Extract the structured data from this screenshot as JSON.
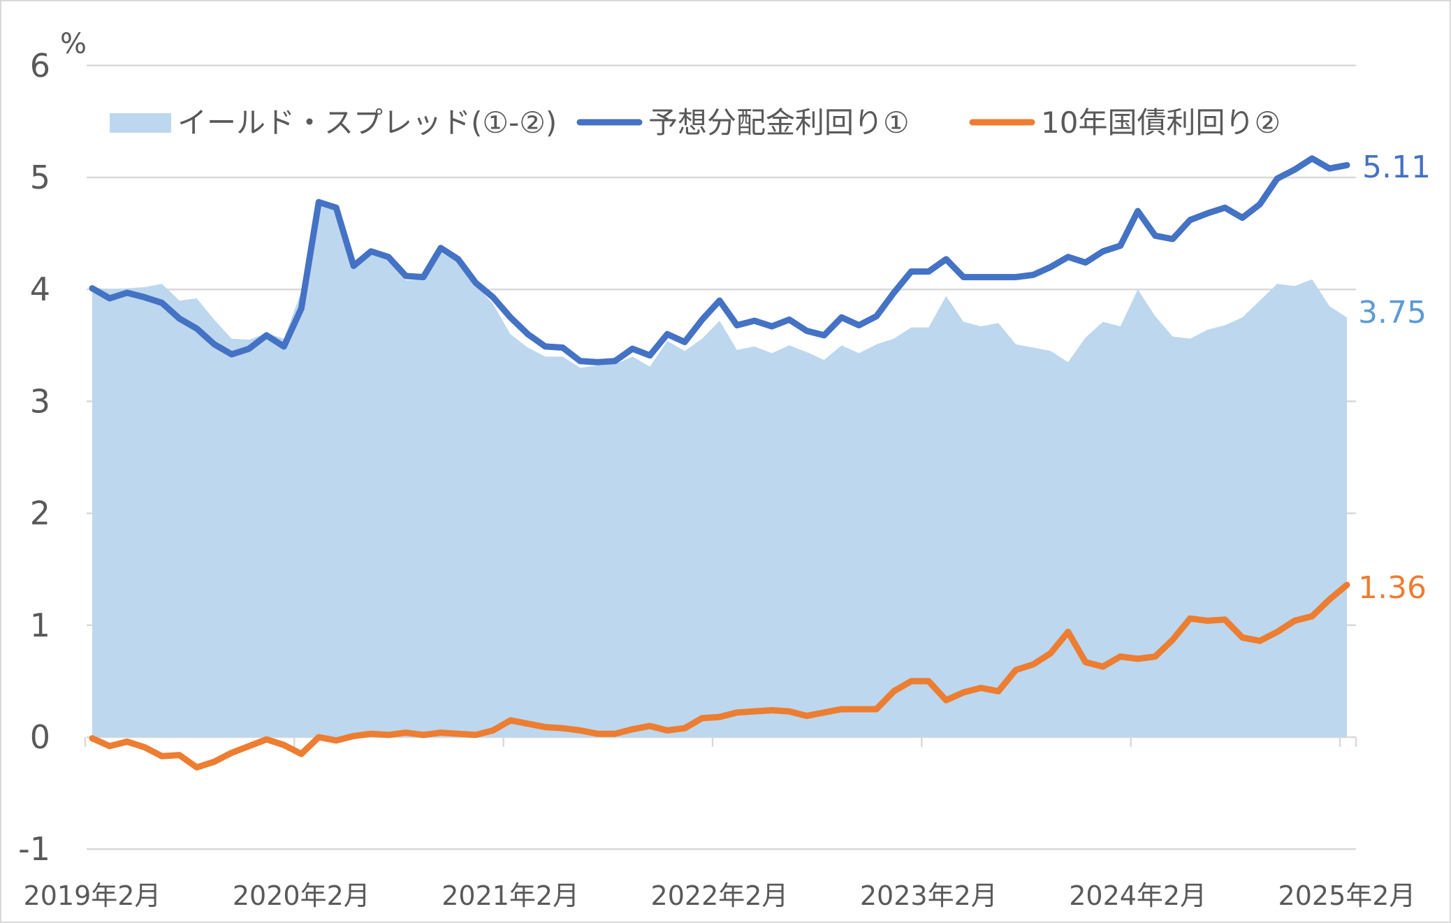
{
  "chart_data": {
    "type": "line",
    "unit_label": "%",
    "ylim": [
      -1,
      6
    ],
    "yticks": [
      "6",
      "5",
      "4",
      "3",
      "2",
      "1",
      "0",
      "-1"
    ],
    "ytick_values": [
      6,
      5,
      4,
      3,
      2,
      1,
      0,
      -1
    ],
    "x_start": "2019-02",
    "x_end": "2025-02",
    "xtick_labels": [
      "2019年2月",
      "2020年2月",
      "2021年2月",
      "2022年2月",
      "2023年2月",
      "2024年2月",
      "2025年2月"
    ],
    "grid": true,
    "legend_position": "top",
    "legend": [
      "イールド・スプレッド(①-②)",
      "予想分配金利回り①",
      "10年国債利回り②"
    ],
    "series": [
      {
        "name": "予想分配金利回り①",
        "kind": "line",
        "color": "#4472C4",
        "values": [
          4.01,
          3.92,
          3.97,
          3.93,
          3.88,
          3.74,
          3.65,
          3.51,
          3.42,
          3.47,
          3.59,
          3.49,
          3.83,
          4.78,
          4.73,
          4.21,
          4.34,
          4.29,
          4.12,
          4.11,
          4.37,
          4.27,
          4.06,
          3.93,
          3.75,
          3.6,
          3.49,
          3.48,
          3.36,
          3.35,
          3.36,
          3.47,
          3.41,
          3.6,
          3.53,
          3.73,
          3.9,
          3.68,
          3.72,
          3.67,
          3.73,
          3.63,
          3.59,
          3.75,
          3.68,
          3.76,
          3.97,
          4.16,
          4.16,
          4.27,
          4.11,
          4.11,
          4.11,
          4.11,
          4.13,
          4.2,
          4.29,
          4.24,
          4.34,
          4.39,
          4.7,
          4.48,
          4.45,
          4.62,
          4.68,
          4.73,
          4.64,
          4.76,
          4.99,
          5.07,
          5.17,
          5.08,
          5.11
        ],
        "end_label": "5.11"
      },
      {
        "name": "10年国債利回り②",
        "kind": "line",
        "color": "#ED7D31",
        "values": [
          -0.01,
          -0.08,
          -0.04,
          -0.09,
          -0.17,
          -0.16,
          -0.27,
          -0.22,
          -0.14,
          -0.08,
          -0.02,
          -0.07,
          -0.15,
          0.0,
          -0.03,
          0.01,
          0.03,
          0.02,
          0.04,
          0.02,
          0.04,
          0.03,
          0.02,
          0.06,
          0.15,
          0.12,
          0.09,
          0.08,
          0.06,
          0.03,
          0.03,
          0.07,
          0.1,
          0.06,
          0.08,
          0.17,
          0.18,
          0.22,
          0.23,
          0.24,
          0.23,
          0.19,
          0.22,
          0.25,
          0.25,
          0.25,
          0.41,
          0.5,
          0.5,
          0.33,
          0.4,
          0.44,
          0.41,
          0.6,
          0.65,
          0.75,
          0.94,
          0.67,
          0.63,
          0.72,
          0.7,
          0.72,
          0.87,
          1.06,
          1.04,
          1.05,
          0.89,
          0.86,
          0.94,
          1.04,
          1.08,
          1.23,
          1.36
        ],
        "end_label": "1.36"
      },
      {
        "name": "イールド・スプレッド(①-②)",
        "kind": "area",
        "color": "#BDD7EE",
        "label_color": "#5B9BD5",
        "derived": "series0 - series1",
        "end_label": "3.75"
      }
    ]
  }
}
